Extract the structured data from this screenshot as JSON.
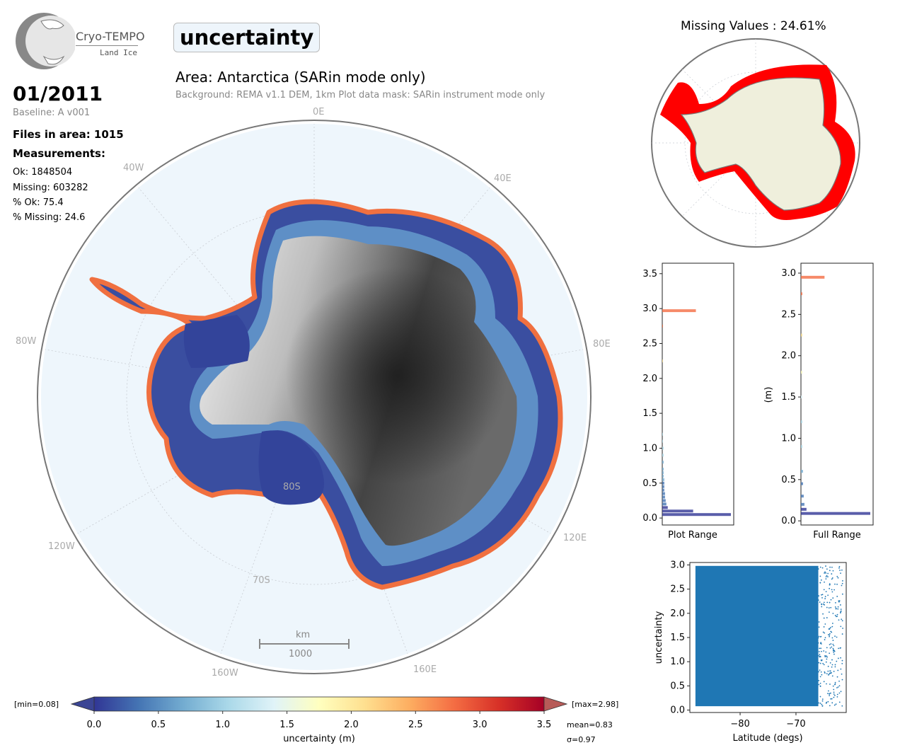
{
  "header": {
    "logo_name": "Cryo-TEMPO",
    "logo_sub": "Land Ice",
    "title": "uncertainty",
    "date": "01/2011",
    "baseline": "Baseline: A v001",
    "files": "Files in area: 1015",
    "measurements_heading": "Measurements:",
    "measurements": [
      "Ok: 1848504",
      "Missing: 603282",
      "% Ok: 75.4",
      "% Missing: 24.6"
    ],
    "area": "Area: Antarctica (SARin mode only)",
    "background_note": "Background: REMA v1.1 DEM, 1km   Plot data mask: SARin instrument mode only"
  },
  "map": {
    "lon_labels": [
      "0E",
      "40E",
      "80E",
      "120E",
      "160E",
      "160W",
      "120W",
      "80W",
      "40W"
    ],
    "lat_labels": [
      "80S",
      "70S"
    ],
    "scale_unit": "km",
    "scale_value": "1000",
    "ocean_color": "#eef6fc",
    "coast_color": "#808080"
  },
  "colorbar": {
    "label": "uncertainty (m)",
    "ticks": [
      "0.0",
      "0.5",
      "1.0",
      "1.5",
      "2.0",
      "2.5",
      "3.0",
      "3.5"
    ],
    "min_label": "[min=0.08]",
    "max_label": "[max=2.98]",
    "mean_label": "mean=0.83",
    "sigma_label": "σ=0.97",
    "colors": [
      "#313695",
      "#4575b4",
      "#74add1",
      "#abd9e9",
      "#e0f3f8",
      "#ffffbf",
      "#fee090",
      "#fdae61",
      "#f46d43",
      "#d73027",
      "#a50026"
    ]
  },
  "inset": {
    "title": "Missing Values : 24.61%",
    "missing_color": "#ff0000",
    "land_color": "#efefdc"
  },
  "chart_data": [
    {
      "type": "bar",
      "orientation": "horizontal",
      "xlabel": "Plot Range",
      "ylabel": "",
      "ylim": [
        -0.1,
        3.65
      ],
      "yticks": [
        "0.0",
        "0.5",
        "1.0",
        "1.5",
        "2.0",
        "2.5",
        "3.0",
        "3.5"
      ],
      "bins": [
        0.05,
        0.1,
        0.15,
        0.2,
        0.25,
        0.3,
        0.35,
        0.4,
        0.45,
        0.5,
        0.55,
        0.6,
        0.65,
        0.7,
        0.8,
        0.9,
        1.0,
        1.1,
        1.2,
        2.25,
        2.75,
        2.97
      ],
      "counts": [
        100,
        45,
        8,
        6,
        5,
        4,
        4,
        3,
        3,
        3,
        3,
        2,
        2,
        2,
        2,
        2,
        2,
        1,
        1,
        1,
        1,
        49
      ]
    },
    {
      "type": "bar",
      "orientation": "horizontal",
      "xlabel": "Full Range",
      "ylabel": "(m)",
      "ylim": [
        -0.05,
        3.12
      ],
      "yticks": [
        "0.0",
        "0.5",
        "1.0",
        "1.5",
        "2.0",
        "2.5",
        "3.0"
      ],
      "bins": [
        0.09,
        0.14,
        0.2,
        0.3,
        0.45,
        0.6,
        0.9,
        1.2,
        1.5,
        1.8,
        2.25,
        2.75,
        2.95
      ],
      "counts": [
        100,
        8,
        5,
        4,
        3,
        3,
        2,
        2,
        2,
        2,
        2,
        2,
        34
      ]
    },
    {
      "type": "scatter",
      "xlabel": "Latitude (degs)",
      "ylabel": "uncertainty",
      "xlim": [
        -89,
        -61
      ],
      "ylim": [
        -0.05,
        3.05
      ],
      "xticks": [
        "−80",
        "−70"
      ],
      "yticks": [
        "0.0",
        "0.5",
        "1.0",
        "1.5",
        "2.0",
        "2.5",
        "3.0"
      ],
      "color": "#1f77b4",
      "dense_range": {
        "x": [
          -88,
          -66
        ],
        "y": [
          0.08,
          2.98
        ]
      }
    }
  ]
}
